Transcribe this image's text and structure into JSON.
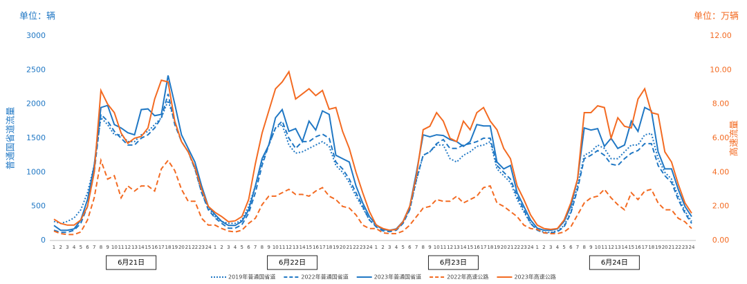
{
  "chart_data": {
    "type": "line",
    "y_unit_label": "单位：辆",
    "y2_unit_label": "单位：万辆",
    "ylabel": "普通国省道流量",
    "y2label": "高速流量",
    "categories": [
      "1",
      "2",
      "3",
      "4",
      "5",
      "6",
      "7",
      "8",
      "9",
      "10",
      "11",
      "12",
      "13",
      "14",
      "15",
      "16",
      "17",
      "18",
      "19",
      "20",
      "21",
      "22",
      "23",
      "24",
      "1",
      "2",
      "3",
      "4",
      "5",
      "6",
      "7",
      "8",
      "9",
      "10",
      "11",
      "12",
      "13",
      "14",
      "15",
      "16",
      "17",
      "18",
      "19",
      "20",
      "21",
      "22",
      "23",
      "24",
      "1",
      "2",
      "3",
      "4",
      "5",
      "6",
      "7",
      "8",
      "9",
      "10",
      "11",
      "12",
      "13",
      "14",
      "15",
      "16",
      "17",
      "18",
      "19",
      "20",
      "21",
      "22",
      "23",
      "24",
      "1",
      "2",
      "3",
      "4",
      "5",
      "6",
      "7",
      "8",
      "9",
      "10",
      "11",
      "12",
      "13",
      "14",
      "15",
      "16",
      "17",
      "18",
      "19",
      "20",
      "21",
      "22",
      "23",
      "24"
    ],
    "groups": [
      "6月21日",
      "6月22日",
      "6月23日",
      "6月24日"
    ],
    "ylim": [
      0,
      3000
    ],
    "yticks": [
      0,
      500,
      1000,
      1500,
      2000,
      2500,
      3000
    ],
    "y2lim": [
      0,
      12
    ],
    "y2ticks": [
      {
        "value": 0,
        "label": "0.00"
      },
      {
        "value": 2,
        "label": "2.00"
      },
      {
        "value": 4,
        "label": "4.00"
      },
      {
        "value": 6,
        "label": "6.00"
      },
      {
        "value": 8,
        "label": "8.00"
      },
      {
        "value": 10,
        "label": "10.00"
      },
      {
        "value": 12,
        "label": "12.00"
      }
    ],
    "grid": false,
    "legend": "bottom",
    "series": [
      {
        "name": "2019年普通国省道",
        "color": "#1f77c4",
        "style": "dotted",
        "axis": "y",
        "values": [
          280,
          250,
          280,
          330,
          450,
          700,
          1100,
          1800,
          1700,
          1550,
          1550,
          1450,
          1450,
          1550,
          1600,
          1700,
          1800,
          2050,
          1750,
          1450,
          1300,
          1050,
          700,
          480,
          350,
          280,
          250,
          250,
          300,
          500,
          800,
          1150,
          1400,
          1650,
          1700,
          1400,
          1280,
          1300,
          1350,
          1400,
          1450,
          1380,
          1100,
          1000,
          850,
          650,
          480,
          300,
          220,
          160,
          150,
          160,
          260,
          460,
          880,
          1250,
          1300,
          1400,
          1400,
          1200,
          1150,
          1250,
          1300,
          1380,
          1400,
          1450,
          1050,
          950,
          850,
          600,
          420,
          250,
          160,
          120,
          120,
          140,
          220,
          420,
          800,
          1250,
          1300,
          1400,
          1350,
          1200,
          1200,
          1300,
          1400,
          1400,
          1550,
          1570,
          1200,
          1000,
          900,
          650,
          430,
          280
        ]
      },
      {
        "name": "2022年普通国省道",
        "color": "#1f77c4",
        "style": "dashed",
        "axis": "y",
        "values": [
          150,
          120,
          120,
          150,
          250,
          500,
          1000,
          1850,
          1750,
          1600,
          1500,
          1400,
          1400,
          1500,
          1550,
          1650,
          1800,
          2150,
          1700,
          1450,
          1300,
          1050,
          700,
          450,
          330,
          250,
          180,
          180,
          230,
          400,
          700,
          1100,
          1400,
          1650,
          1750,
          1500,
          1350,
          1450,
          1450,
          1520,
          1560,
          1500,
          1150,
          1050,
          900,
          700,
          500,
          300,
          200,
          140,
          130,
          150,
          250,
          450,
          900,
          1250,
          1300,
          1420,
          1480,
          1350,
          1350,
          1400,
          1420,
          1450,
          1500,
          1500,
          1100,
          1000,
          900,
          650,
          450,
          250,
          150,
          110,
          110,
          130,
          200,
          400,
          750,
          1200,
          1250,
          1320,
          1250,
          1120,
          1100,
          1200,
          1280,
          1320,
          1420,
          1420,
          1100,
          950,
          850,
          600,
          400,
          250
        ]
      },
      {
        "name": "2023年普通国省道",
        "color": "#1f77c4",
        "style": "solid",
        "axis": "y",
        "values": [
          220,
          150,
          150,
          170,
          300,
          600,
          1100,
          1950,
          1980,
          1700,
          1650,
          1580,
          1550,
          1920,
          1930,
          1830,
          1850,
          2420,
          2000,
          1550,
          1350,
          1150,
          800,
          500,
          380,
          280,
          220,
          220,
          280,
          450,
          800,
          1200,
          1400,
          1800,
          1920,
          1600,
          1640,
          1450,
          1750,
          1620,
          1900,
          1850,
          1250,
          1200,
          1150,
          800,
          550,
          350,
          230,
          160,
          150,
          170,
          280,
          500,
          1000,
          1550,
          1520,
          1550,
          1540,
          1480,
          1450,
          1380,
          1450,
          1700,
          1680,
          1680,
          1150,
          1050,
          1100,
          700,
          500,
          300,
          180,
          150,
          150,
          170,
          280,
          500,
          900,
          1650,
          1620,
          1640,
          1380,
          1500,
          1350,
          1400,
          1750,
          1600,
          1950,
          1900,
          1300,
          1050,
          1050,
          750,
          500,
          350
        ]
      },
      {
        "name": "2022年高速公路",
        "color": "#f36a21",
        "style": "dashed",
        "axis": "y2",
        "values": [
          0.55,
          0.4,
          0.35,
          0.35,
          0.5,
          1.2,
          2.5,
          4.7,
          3.6,
          3.8,
          2.5,
          3.2,
          2.9,
          3.2,
          3.2,
          2.9,
          4.2,
          4.7,
          4.1,
          3.0,
          2.3,
          2.3,
          1.3,
          0.9,
          0.9,
          0.7,
          0.55,
          0.5,
          0.6,
          1.0,
          1.3,
          2.1,
          2.6,
          2.6,
          2.8,
          3.0,
          2.7,
          2.7,
          2.6,
          2.9,
          3.1,
          2.6,
          2.4,
          2.0,
          1.9,
          1.5,
          0.9,
          0.7,
          0.7,
          0.45,
          0.4,
          0.4,
          0.55,
          0.9,
          1.4,
          1.9,
          2.0,
          2.4,
          2.3,
          2.3,
          2.6,
          2.2,
          2.4,
          2.6,
          3.1,
          3.2,
          2.2,
          2.0,
          1.7,
          1.4,
          0.9,
          0.7,
          0.65,
          0.45,
          0.4,
          0.4,
          0.5,
          0.8,
          1.5,
          2.2,
          2.5,
          2.6,
          3.0,
          2.5,
          2.1,
          1.8,
          2.8,
          2.4,
          2.9,
          3.0,
          2.2,
          1.8,
          1.8,
          1.3,
          1.1,
          0.7
        ]
      },
      {
        "name": "2023年高速公路",
        "color": "#f36a21",
        "style": "solid",
        "axis": "y2",
        "values": [
          1.25,
          1.0,
          0.9,
          0.9,
          1.2,
          2.0,
          4.0,
          8.8,
          8.0,
          7.5,
          6.3,
          5.7,
          6.0,
          6.1,
          6.6,
          8.3,
          9.4,
          9.3,
          7.0,
          5.8,
          5.2,
          4.3,
          3.0,
          2.0,
          1.65,
          1.4,
          1.1,
          1.15,
          1.4,
          2.4,
          4.5,
          6.3,
          7.6,
          8.9,
          9.3,
          9.9,
          8.3,
          8.6,
          8.9,
          8.5,
          8.8,
          7.7,
          7.8,
          6.4,
          5.4,
          4.0,
          2.8,
          1.7,
          0.9,
          0.7,
          0.6,
          0.65,
          1.1,
          2.0,
          3.8,
          6.5,
          6.7,
          7.5,
          7.0,
          6.0,
          5.8,
          7.0,
          6.5,
          7.5,
          7.8,
          7.0,
          6.5,
          5.4,
          4.8,
          3.2,
          2.4,
          1.5,
          0.9,
          0.7,
          0.65,
          0.7,
          1.2,
          2.2,
          3.6,
          7.5,
          7.5,
          7.9,
          7.8,
          6.0,
          7.2,
          6.7,
          6.6,
          8.3,
          8.9,
          7.5,
          7.4,
          5.2,
          4.6,
          3.3,
          2.2,
          1.6
        ]
      }
    ]
  }
}
